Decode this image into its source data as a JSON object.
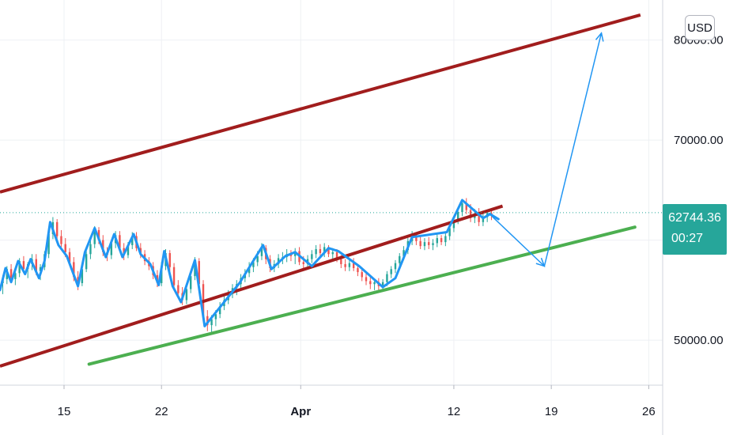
{
  "currency_button": {
    "label": "USD"
  },
  "last_price": {
    "value": "62744.36",
    "countdown": "00:27",
    "color": "#26a69a"
  },
  "colors": {
    "channel": "#a11d1d",
    "support": "#4caf50",
    "price_path": "#2196f3",
    "forecast": "#2196f3",
    "candle_up": "#26a69a",
    "candle_down": "#ef5350",
    "grid": "#eef0f4"
  },
  "chart_data": {
    "type": "candlestick",
    "y_axis": {
      "ticks": [
        "50000.00",
        "70000.00",
        "80000.00"
      ],
      "tick_values": [
        50000,
        70000,
        80000
      ],
      "range": [
        45500,
        84000
      ],
      "side": "right"
    },
    "x_axis": {
      "ticks": [
        "15",
        "22",
        "Apr",
        "12",
        "19",
        "26"
      ],
      "tick_days": [
        15,
        22,
        32,
        43,
        50,
        57
      ],
      "bold_ticks": [
        "Apr"
      ],
      "range_days": [
        10.4,
        58
      ],
      "note": "days counted from March 0 (Mar 15 = 15, Apr 1 = 32)"
    },
    "last_price_line": 62744.36,
    "grid": true,
    "price_path": {
      "days": [
        10.4,
        10.8,
        11.2,
        11.7,
        12.2,
        12.6,
        13.2,
        13.6,
        14.0,
        14.6,
        15.2,
        16.0,
        16.5,
        17.2,
        18.0,
        18.6,
        19.2,
        20.0,
        20.5,
        21.2,
        21.8,
        22.2,
        22.8,
        23.4,
        24.4,
        25.1,
        27.6,
        29.3,
        29.9,
        30.9,
        31.6,
        32.8,
        34.0,
        34.7,
        36.2,
        37.9,
        38.8,
        40.0,
        42.5,
        43.6,
        45.1,
        45.6,
        46.2
      ],
      "prices": [
        55000,
        57200,
        55800,
        57900,
        56600,
        58100,
        56200,
        57900,
        61800,
        59500,
        58400,
        55400,
        58800,
        61200,
        58300,
        60600,
        58300,
        60600,
        58600,
        57600,
        55500,
        58900,
        55400,
        53800,
        58000,
        51400,
        55700,
        59500,
        57100,
        58400,
        58800,
        57400,
        59200,
        58900,
        57400,
        55300,
        56200,
        60300,
        60800,
        64000,
        62200,
        62600,
        62100
      ]
    },
    "channel_upper_line": {
      "from": {
        "day": 10.4,
        "price": 64800
      },
      "to": {
        "day": 56.4,
        "price": 82500
      }
    },
    "channel_lower_line": {
      "from": {
        "day": 10.4,
        "price": 47400
      },
      "to": {
        "day": 46.5,
        "price": 63400
      }
    },
    "support_line": {
      "from": {
        "day": 16.8,
        "price": 47600
      },
      "to": {
        "day": 56.0,
        "price": 61300
      }
    },
    "forecast_path": {
      "days": [
        45.5,
        49.5,
        53.6
      ],
      "prices": [
        62700,
        57400,
        80700
      ]
    },
    "candles": [
      [
        10.6,
        55.7,
        56.5,
        54.6,
        56.1
      ],
      [
        10.9,
        56.1,
        57.4,
        55.6,
        57.1
      ],
      [
        11.2,
        57.1,
        57.6,
        55.7,
        56.1
      ],
      [
        11.5,
        56.1,
        57.0,
        55.5,
        56.7
      ],
      [
        11.8,
        56.7,
        58.2,
        56.3,
        57.9
      ],
      [
        12.1,
        57.9,
        58.4,
        56.8,
        57.1
      ],
      [
        12.4,
        57.1,
        57.8,
        56.2,
        57.6
      ],
      [
        12.7,
        57.6,
        58.6,
        57.0,
        58.1
      ],
      [
        13.0,
        58.1,
        58.6,
        56.5,
        56.9
      ],
      [
        13.3,
        56.9,
        57.6,
        56.0,
        57.3
      ],
      [
        13.6,
        57.3,
        58.9,
        57.0,
        58.6
      ],
      [
        13.9,
        58.6,
        61.0,
        58.2,
        60.6
      ],
      [
        14.2,
        60.6,
        62.3,
        60.1,
        61.8
      ],
      [
        14.5,
        61.8,
        62.1,
        60.0,
        60.4
      ],
      [
        14.8,
        60.4,
        61.0,
        59.2,
        59.6
      ],
      [
        15.1,
        59.6,
        60.2,
        58.3,
        58.8
      ],
      [
        15.4,
        58.8,
        59.2,
        57.4,
        57.8
      ],
      [
        15.7,
        57.8,
        58.3,
        55.9,
        56.3
      ],
      [
        16.0,
        56.3,
        56.9,
        55.0,
        55.7
      ],
      [
        16.3,
        55.7,
        57.4,
        55.4,
        57.1
      ],
      [
        16.6,
        57.1,
        58.9,
        56.8,
        58.6
      ],
      [
        16.9,
        58.6,
        60.0,
        58.1,
        59.6
      ],
      [
        17.2,
        59.6,
        61.4,
        59.2,
        61.0
      ],
      [
        17.5,
        61.0,
        61.3,
        59.6,
        60.0
      ],
      [
        17.8,
        60.0,
        60.5,
        58.4,
        58.8
      ],
      [
        18.1,
        58.8,
        59.3,
        57.9,
        58.5
      ],
      [
        18.4,
        58.5,
        60.0,
        58.1,
        59.7
      ],
      [
        18.7,
        59.7,
        60.9,
        59.2,
        60.5
      ],
      [
        19.0,
        60.5,
        60.9,
        58.9,
        59.2
      ],
      [
        19.3,
        59.2,
        59.7,
        58.0,
        58.5
      ],
      [
        19.6,
        58.5,
        59.8,
        58.2,
        59.5
      ],
      [
        19.9,
        59.5,
        60.8,
        59.1,
        60.4
      ],
      [
        20.2,
        60.4,
        60.8,
        58.9,
        59.2
      ],
      [
        20.5,
        59.2,
        59.7,
        58.2,
        58.6
      ],
      [
        20.8,
        58.6,
        59.0,
        57.5,
        57.9
      ],
      [
        21.1,
        57.9,
        58.3,
        57.0,
        57.4
      ],
      [
        21.4,
        57.4,
        57.8,
        56.1,
        56.5
      ],
      [
        21.7,
        56.5,
        57.0,
        55.3,
        55.7
      ],
      [
        22.0,
        55.7,
        57.8,
        55.4,
        57.4
      ],
      [
        22.3,
        57.4,
        59.1,
        57.0,
        58.7
      ],
      [
        22.6,
        58.7,
        59.0,
        56.9,
        57.3
      ],
      [
        22.9,
        57.3,
        57.7,
        55.1,
        55.5
      ],
      [
        23.2,
        55.5,
        56.0,
        54.3,
        54.7
      ],
      [
        23.5,
        54.7,
        55.3,
        53.5,
        54.0
      ],
      [
        23.8,
        54.0,
        55.5,
        53.6,
        55.1
      ],
      [
        24.1,
        55.1,
        56.8,
        54.7,
        56.4
      ],
      [
        24.4,
        56.4,
        58.3,
        56.0,
        57.9
      ],
      [
        24.7,
        57.9,
        58.2,
        55.2,
        55.6
      ],
      [
        25.0,
        55.6,
        56.0,
        52.0,
        52.4
      ],
      [
        25.3,
        52.4,
        53.0,
        50.9,
        51.5
      ],
      [
        25.6,
        51.5,
        52.5,
        50.6,
        52.1
      ],
      [
        25.9,
        52.1,
        53.0,
        51.4,
        52.6
      ],
      [
        26.2,
        52.6,
        53.8,
        52.2,
        53.4
      ],
      [
        26.5,
        53.4,
        54.4,
        53.0,
        54.0
      ],
      [
        26.8,
        54.0,
        55.0,
        53.6,
        54.6
      ],
      [
        27.1,
        54.6,
        55.6,
        54.2,
        55.2
      ],
      [
        27.4,
        55.2,
        56.0,
        54.5,
        55.6
      ],
      [
        27.7,
        55.6,
        56.6,
        55.2,
        56.2
      ],
      [
        28.0,
        56.2,
        57.1,
        55.8,
        56.7
      ],
      [
        28.3,
        56.7,
        57.8,
        56.3,
        57.3
      ],
      [
        28.6,
        57.3,
        58.2,
        56.8,
        57.8
      ],
      [
        28.9,
        57.8,
        58.9,
        57.4,
        58.4
      ],
      [
        29.2,
        58.4,
        59.7,
        58.0,
        59.2
      ],
      [
        29.5,
        59.2,
        59.5,
        57.6,
        58.1
      ],
      [
        29.8,
        58.1,
        58.5,
        56.8,
        57.2
      ],
      [
        30.1,
        57.2,
        58.0,
        56.8,
        57.6
      ],
      [
        30.4,
        57.6,
        58.6,
        57.2,
        58.2
      ],
      [
        30.7,
        58.2,
        58.8,
        57.6,
        58.3
      ],
      [
        31.0,
        58.3,
        59.1,
        57.8,
        58.6
      ],
      [
        31.3,
        58.6,
        59.0,
        57.9,
        58.4
      ],
      [
        31.6,
        58.4,
        59.2,
        57.6,
        58.9
      ],
      [
        31.9,
        58.9,
        59.3,
        57.5,
        57.8
      ],
      [
        32.2,
        57.8,
        58.4,
        57.1,
        57.6
      ],
      [
        32.5,
        57.6,
        58.5,
        57.2,
        58.1
      ],
      [
        32.8,
        58.1,
        59.0,
        57.7,
        58.6
      ],
      [
        33.1,
        58.6,
        59.5,
        58.2,
        59.1
      ],
      [
        33.4,
        59.1,
        59.6,
        58.3,
        58.7
      ],
      [
        33.7,
        58.7,
        59.7,
        58.3,
        59.3
      ],
      [
        34.0,
        59.3,
        59.5,
        58.3,
        58.6
      ],
      [
        34.3,
        58.6,
        59.2,
        58.1,
        58.8
      ],
      [
        34.6,
        58.8,
        59.1,
        57.8,
        58.1
      ],
      [
        34.9,
        58.1,
        58.5,
        57.2,
        57.6
      ],
      [
        35.2,
        57.6,
        58.1,
        56.9,
        57.3
      ],
      [
        35.5,
        57.3,
        58.0,
        56.9,
        57.7
      ],
      [
        35.8,
        57.7,
        58.2,
        56.9,
        57.2
      ],
      [
        36.1,
        57.2,
        57.6,
        56.4,
        56.8
      ],
      [
        36.4,
        56.8,
        57.2,
        55.9,
        56.3
      ],
      [
        36.7,
        56.3,
        56.8,
        55.5,
        55.9
      ],
      [
        37.0,
        55.9,
        56.4,
        55.1,
        55.6
      ],
      [
        37.3,
        55.6,
        56.1,
        55.0,
        55.8
      ],
      [
        37.6,
        55.8,
        56.2,
        55.0,
        55.4
      ],
      [
        37.9,
        55.4,
        56.1,
        55.0,
        55.8
      ],
      [
        38.2,
        55.8,
        56.9,
        55.4,
        56.6
      ],
      [
        38.5,
        56.6,
        57.4,
        56.2,
        57.1
      ],
      [
        38.8,
        57.1,
        58.0,
        56.7,
        57.7
      ],
      [
        39.1,
        57.7,
        58.7,
        57.3,
        58.4
      ],
      [
        39.4,
        58.4,
        59.4,
        58.0,
        59.0
      ],
      [
        39.7,
        59.0,
        60.2,
        58.6,
        59.9
      ],
      [
        40.0,
        59.9,
        60.9,
        59.5,
        60.5
      ],
      [
        40.3,
        60.5,
        60.8,
        59.5,
        59.9
      ],
      [
        40.6,
        59.9,
        60.4,
        59.1,
        59.4
      ],
      [
        40.9,
        59.4,
        60.2,
        59.0,
        59.8
      ],
      [
        41.2,
        59.8,
        60.3,
        59.1,
        59.5
      ],
      [
        41.5,
        59.5,
        60.1,
        59.0,
        59.7
      ],
      [
        41.8,
        59.7,
        60.6,
        59.3,
        60.2
      ],
      [
        42.1,
        60.2,
        60.5,
        59.5,
        59.8
      ],
      [
        42.4,
        59.8,
        60.8,
        59.4,
        60.4
      ],
      [
        42.7,
        60.4,
        61.6,
        60.0,
        61.2
      ],
      [
        43.0,
        61.2,
        62.4,
        60.8,
        62.0
      ],
      [
        43.3,
        62.0,
        63.2,
        61.6,
        62.8
      ],
      [
        43.6,
        62.8,
        64.1,
        62.4,
        63.7
      ],
      [
        43.9,
        63.7,
        64.2,
        62.6,
        63.0
      ],
      [
        44.2,
        63.0,
        63.6,
        61.8,
        62.2
      ],
      [
        44.5,
        62.2,
        63.1,
        61.7,
        62.6
      ],
      [
        44.8,
        62.6,
        63.2,
        61.4,
        61.8
      ],
      [
        45.1,
        61.8,
        62.8,
        61.4,
        62.3
      ],
      [
        45.4,
        62.3,
        63.0,
        61.8,
        62.7
      ],
      [
        45.7,
        62.7,
        63.1,
        62.0,
        62.5
      ]
    ]
  }
}
